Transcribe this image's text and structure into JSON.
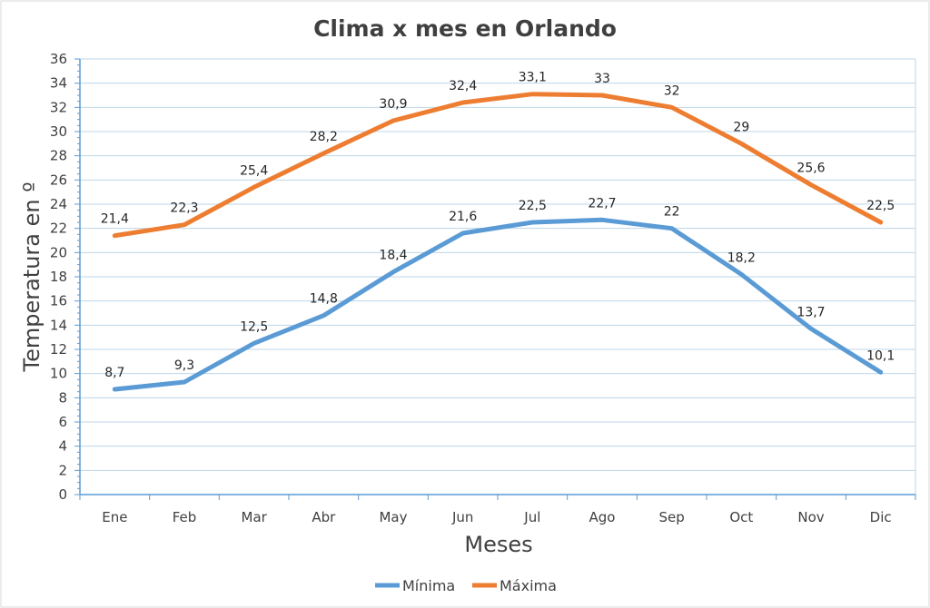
{
  "chart_data": {
    "type": "line",
    "title": "Clima x mes en Orlando",
    "xlabel": "Meses",
    "ylabel": "Temperatura en º",
    "categories": [
      "Ene",
      "Feb",
      "Mar",
      "Abr",
      "May",
      "Jun",
      "Jul",
      "Ago",
      "Sep",
      "Oct",
      "Nov",
      "Dic"
    ],
    "ylim": [
      0,
      36
    ],
    "ytick_step": 2,
    "grid": true,
    "legend": "bottom",
    "series": [
      {
        "name": "Mínima",
        "color": "#5b9bd5",
        "values": [
          8.7,
          9.3,
          12.5,
          14.8,
          18.4,
          21.6,
          22.5,
          22.7,
          22,
          18.2,
          13.7,
          10.1
        ],
        "labels": [
          "8,7",
          "9,3",
          "12,5",
          "14,8",
          "18,4",
          "21,6",
          "22,5",
          "22,7",
          "22",
          "18,2",
          "13,7",
          "10,1"
        ]
      },
      {
        "name": "Máxima",
        "color": "#ed7d31",
        "values": [
          21.4,
          22.3,
          25.4,
          28.2,
          30.9,
          32.4,
          33.1,
          33,
          32,
          29,
          25.6,
          22.5
        ],
        "labels": [
          "21,4",
          "22,3",
          "25,4",
          "28,2",
          "30,9",
          "32,4",
          "33,1",
          "33",
          "32",
          "29",
          "25,6",
          "22,5"
        ]
      }
    ],
    "colors": {
      "grid": "#bcd6e8",
      "axis": "#5b9bd5",
      "frame": "#d9d9d9"
    }
  }
}
